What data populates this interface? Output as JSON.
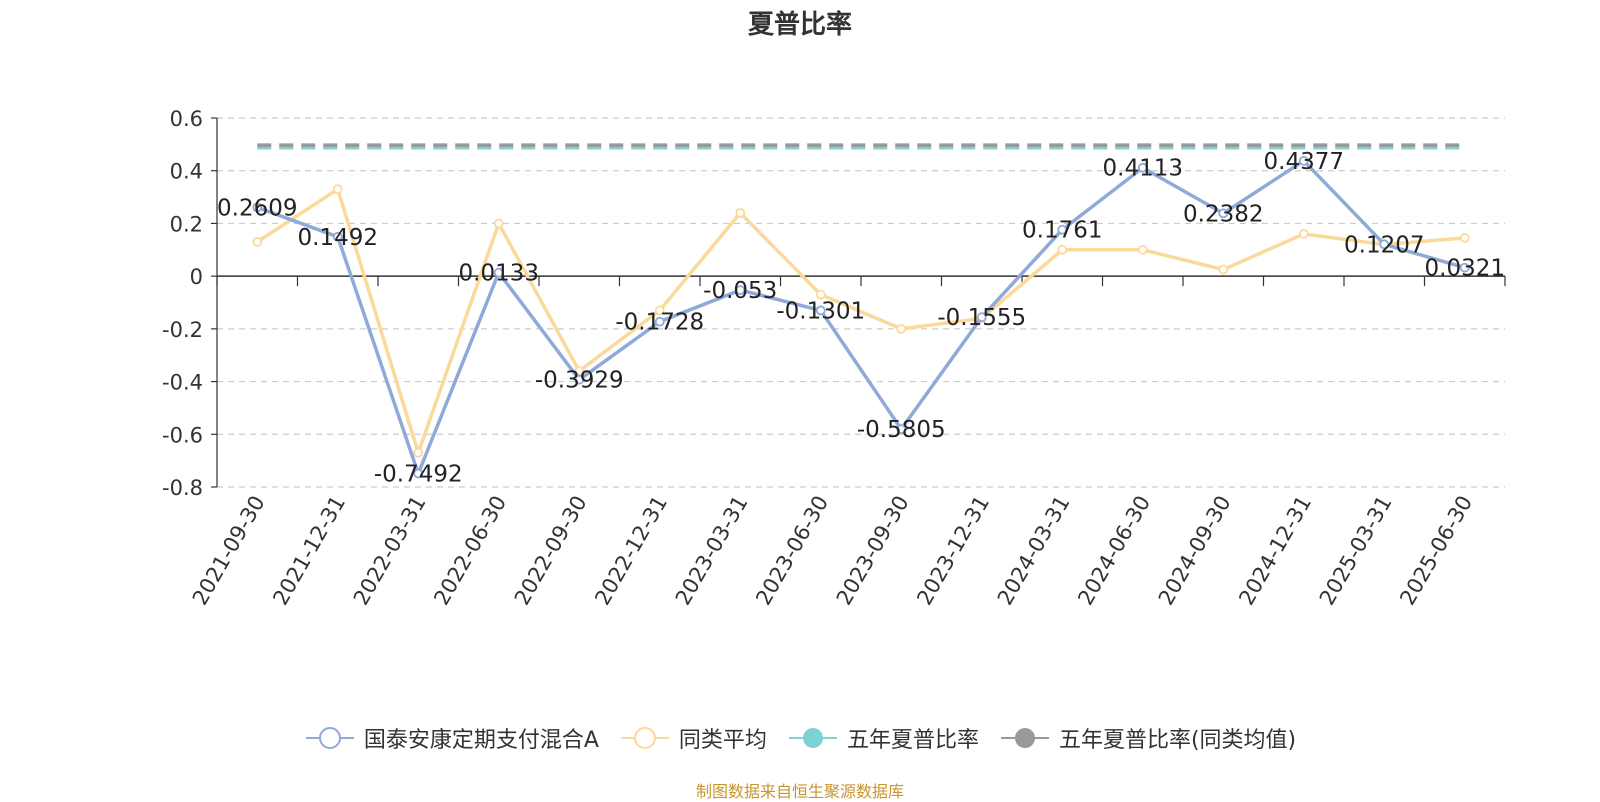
{
  "chart_data": {
    "type": "line",
    "title": "夏普比率",
    "categories": [
      "2021-09-30",
      "2021-12-31",
      "2022-03-31",
      "2022-06-30",
      "2022-09-30",
      "2022-12-31",
      "2023-03-31",
      "2023-06-30",
      "2023-09-30",
      "2023-12-31",
      "2024-03-31",
      "2024-06-30",
      "2024-09-30",
      "2024-12-31",
      "2025-03-31",
      "2025-06-30"
    ],
    "ylim": [
      -0.8,
      0.6
    ],
    "yticks": [
      0.6,
      0.4,
      0.2,
      0,
      -0.2,
      -0.4,
      -0.6,
      -0.8
    ],
    "ytick_labels": [
      "0.6",
      "0.4",
      "0.2",
      "0",
      "-0.2",
      "-0.4",
      "-0.6",
      "-0.8"
    ],
    "grid": true,
    "legend_position": "bottom",
    "series": [
      {
        "name": "国泰安康定期支付混合A",
        "color": "#8faad8",
        "values": [
          0.2609,
          0.1492,
          -0.7492,
          0.0133,
          -0.3929,
          -0.1728,
          -0.053,
          -0.1301,
          -0.5805,
          -0.1555,
          0.1761,
          0.4113,
          0.2382,
          0.4377,
          0.1207,
          0.0321
        ],
        "labels": [
          "0.2609",
          "0.1492",
          "-0.7492",
          "0.0133",
          "-0.3929",
          "-0.1728",
          "-0.053",
          "-0.1301",
          "-0.5805",
          "-0.1555",
          "0.1761",
          "0.4113",
          "0.2382",
          "0.4377",
          "0.1207",
          "0.0321"
        ]
      },
      {
        "name": "同类平均",
        "color": "#fbd99a",
        "values": [
          0.13,
          0.33,
          -0.67,
          0.2,
          -0.36,
          -0.13,
          0.24,
          -0.07,
          -0.2,
          -0.16,
          0.1,
          0.1,
          0.025,
          0.16,
          0.12,
          0.145
        ]
      },
      {
        "name": "五年夏普比率",
        "color": "#7dd3d4",
        "style": "dashed",
        "constant": 0.487
      },
      {
        "name": "五年夏普比率(同类均值)",
        "color": "#999999",
        "style": "dashed",
        "constant": 0.497
      }
    ]
  },
  "source_note": "制图数据来自恒生聚源数据库"
}
